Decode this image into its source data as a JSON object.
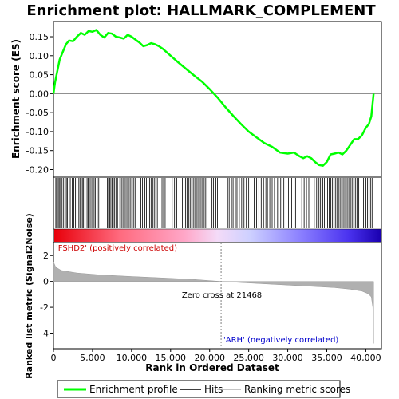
{
  "chart_data": {
    "type": "line",
    "title": "Enrichment plot: HALLMARK_COMPLEMENT",
    "es_panel": {
      "ylabel": "Enrichment score (ES)",
      "ylim": [
        -0.22,
        0.19
      ],
      "yticks": [
        "0.15",
        "0.10",
        "0.05",
        "0.00",
        "-0.05",
        "-0.10",
        "-0.15",
        "-0.20"
      ],
      "series": [
        {
          "name": "Enrichment profile",
          "color": "#00ff00",
          "x": [
            0,
            200,
            500,
            800,
            1200,
            1600,
            2000,
            2500,
            3000,
            3500,
            4000,
            4500,
            5000,
            5500,
            6000,
            6500,
            7000,
            7500,
            8000,
            8500,
            9000,
            9500,
            10000,
            10500,
            11000,
            11500,
            12000,
            12500,
            13000,
            13500,
            14000,
            15000,
            16000,
            17000,
            18000,
            19000,
            20000,
            21000,
            22000,
            23000,
            24000,
            25000,
            26000,
            27000,
            28000,
            29000,
            30000,
            30800,
            31500,
            32000,
            32500,
            33000,
            33500,
            34000,
            34500,
            35000,
            35500,
            36000,
            36500,
            37000,
            37500,
            38000,
            38500,
            39000,
            39500,
            40000,
            40400,
            40700,
            41000
          ],
          "y": [
            0.0,
            0.03,
            0.06,
            0.09,
            0.11,
            0.13,
            0.14,
            0.138,
            0.15,
            0.16,
            0.155,
            0.165,
            0.163,
            0.168,
            0.155,
            0.148,
            0.16,
            0.158,
            0.15,
            0.148,
            0.145,
            0.155,
            0.15,
            0.142,
            0.135,
            0.125,
            0.128,
            0.133,
            0.13,
            0.125,
            0.118,
            0.1,
            0.082,
            0.065,
            0.048,
            0.032,
            0.012,
            -0.01,
            -0.035,
            -0.058,
            -0.08,
            -0.1,
            -0.115,
            -0.13,
            -0.14,
            -0.155,
            -0.158,
            -0.155,
            -0.165,
            -0.17,
            -0.165,
            -0.17,
            -0.18,
            -0.188,
            -0.19,
            -0.18,
            -0.16,
            -0.158,
            -0.155,
            -0.16,
            -0.15,
            -0.135,
            -0.12,
            -0.12,
            -0.11,
            -0.09,
            -0.08,
            -0.06,
            0.0
          ]
        }
      ]
    },
    "hits_panel": {
      "name": "Hits",
      "ranks": [
        300,
        420,
        520,
        700,
        820,
        950,
        1100,
        1300,
        1500,
        1650,
        1800,
        2000,
        2150,
        2400,
        2600,
        2800,
        3000,
        3250,
        3400,
        3550,
        3700,
        3850,
        4050,
        4300,
        4450,
        4600,
        4800,
        5000,
        5200,
        5350,
        5600,
        5800,
        6900,
        7050,
        7200,
        7350,
        7500,
        7650,
        7800,
        8000,
        8200,
        8500,
        8700,
        8900,
        9100,
        9300,
        9500,
        9700,
        9900,
        10100,
        10300,
        10500,
        11200,
        11400,
        11700,
        11900,
        12100,
        12300,
        12500,
        12700,
        12900,
        13100,
        13300,
        13900,
        14100,
        14300,
        15200,
        15500,
        15800,
        16200,
        16500,
        16900,
        17100,
        17300,
        17500,
        17700,
        17900,
        18100,
        18300,
        18500,
        18700,
        18900,
        19100,
        19300,
        19500,
        20300,
        20500,
        20800,
        21000,
        21200,
        22300,
        22500,
        22800,
        23000,
        23300,
        23500,
        23800,
        24100,
        24400,
        24700,
        25000,
        25300,
        25700,
        26000,
        26300,
        26600,
        26900,
        27200,
        27400,
        27700,
        28000,
        28300,
        28700,
        29100,
        29500,
        29800,
        30100,
        30500,
        31000,
        31800,
        32100,
        32400,
        32700,
        33400,
        33700,
        34000,
        34200,
        34500,
        34700,
        34900,
        35100,
        35300,
        35500,
        35700,
        35900,
        36100,
        36300,
        36500,
        36700,
        36900,
        37100,
        37300,
        37500,
        37700,
        37900,
        38100,
        38300,
        38500,
        38700,
        38900,
        39100,
        39400,
        39700,
        40000,
        40200,
        40400,
        40600,
        40800
      ]
    },
    "metric_panel": {
      "ylabel": "Ranked list metric (Signal2Noise)",
      "name": "Ranking metric scores",
      "ylim": [
        -5.2,
        3.0
      ],
      "yticks": [
        "2",
        "0",
        "-2",
        "-4"
      ],
      "x": [
        0,
        300,
        1000,
        3000,
        6000,
        10000,
        14000,
        18000,
        21468,
        25000,
        29000,
        33000,
        36000,
        38000,
        39500,
        40300,
        40700,
        40900,
        41000
      ],
      "y": [
        1.5,
        1.1,
        0.85,
        0.65,
        0.5,
        0.38,
        0.27,
        0.15,
        0.0,
        -0.12,
        -0.25,
        -0.38,
        -0.48,
        -0.6,
        -0.75,
        -0.95,
        -1.2,
        -2.0,
        -4.8
      ],
      "zero_cross_label": "Zero cross at 21468",
      "zero_cross": 21468,
      "pos_label": "'FSHD2' (positively correlated)",
      "neg_label": "'ARH' (negatively correlated)",
      "pos_color": "#cc0000",
      "neg_color": "#0000cc"
    },
    "xaxis": {
      "xlabel": "Rank in Ordered Dataset",
      "xlim": [
        0,
        42000
      ],
      "ticks": [
        0,
        5000,
        10000,
        15000,
        20000,
        25000,
        30000,
        35000,
        40000
      ],
      "tick_labels": [
        "0",
        "5,000",
        "10,000",
        "15,000",
        "20,000",
        "25,000",
        "30,000",
        "35,000",
        "40,000"
      ]
    },
    "legend": {
      "items": [
        "Enrichment profile",
        "Hits",
        "Ranking metric scores"
      ],
      "placement": "bottom"
    },
    "colors": {
      "profile": "#00ff00",
      "hit": "#000000",
      "metric_fill": "#b0b0b0",
      "zero_line": "#808080"
    }
  }
}
